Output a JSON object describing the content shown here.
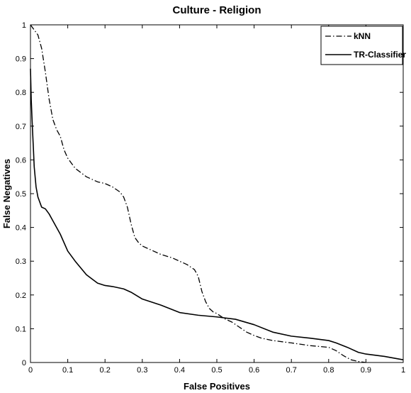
{
  "chart_data": {
    "type": "line",
    "title": "Culture - Religion",
    "xlabel": "False Positives",
    "ylabel": "False Negatives",
    "xlim": [
      0,
      1
    ],
    "ylim": [
      0,
      1
    ],
    "xticks": [
      "0",
      "0.1",
      "0.2",
      "0.3",
      "0.4",
      "0.5",
      "0.6",
      "0.7",
      "0.8",
      "0.9",
      "1"
    ],
    "yticks": [
      "0",
      "0.1",
      "0.2",
      "0.3",
      "0.4",
      "0.5",
      "0.6",
      "0.7",
      "0.8",
      "0.9",
      "1"
    ],
    "grid": false,
    "legend_position": "top-right",
    "series": [
      {
        "name": "kNN",
        "line_style": "dash-dot",
        "color": "#000000",
        "x": [
          0,
          0.01,
          0.02,
          0.03,
          0.04,
          0.05,
          0.06,
          0.07,
          0.08,
          0.09,
          0.1,
          0.12,
          0.15,
          0.18,
          0.2,
          0.22,
          0.24,
          0.25,
          0.26,
          0.27,
          0.28,
          0.29,
          0.3,
          0.32,
          0.35,
          0.38,
          0.4,
          0.42,
          0.44,
          0.45,
          0.46,
          0.47,
          0.48,
          0.49,
          0.5,
          0.52,
          0.54,
          0.56,
          0.58,
          0.6,
          0.62,
          0.65,
          0.7,
          0.75,
          0.8,
          0.82,
          0.84,
          0.86,
          0.88,
          0.9
        ],
        "y": [
          1.0,
          0.985,
          0.97,
          0.93,
          0.86,
          0.78,
          0.72,
          0.69,
          0.67,
          0.63,
          0.605,
          0.575,
          0.55,
          0.535,
          0.53,
          0.52,
          0.505,
          0.49,
          0.46,
          0.41,
          0.37,
          0.355,
          0.345,
          0.335,
          0.32,
          0.31,
          0.3,
          0.29,
          0.275,
          0.255,
          0.21,
          0.18,
          0.16,
          0.15,
          0.145,
          0.13,
          0.12,
          0.105,
          0.09,
          0.08,
          0.072,
          0.065,
          0.058,
          0.05,
          0.045,
          0.035,
          0.02,
          0.008,
          0.003,
          0.0
        ]
      },
      {
        "name": "TR-Classifier",
        "line_style": "solid",
        "color": "#000000",
        "x": [
          0,
          0.002,
          0.005,
          0.008,
          0.01,
          0.015,
          0.02,
          0.03,
          0.04,
          0.05,
          0.06,
          0.08,
          0.1,
          0.12,
          0.15,
          0.18,
          0.2,
          0.22,
          0.25,
          0.27,
          0.3,
          0.35,
          0.4,
          0.45,
          0.5,
          0.55,
          0.6,
          0.65,
          0.7,
          0.75,
          0.8,
          0.82,
          0.85,
          0.88,
          0.9,
          0.95,
          1.0
        ],
        "y": [
          0.87,
          0.78,
          0.7,
          0.63,
          0.58,
          0.52,
          0.49,
          0.46,
          0.455,
          0.44,
          0.42,
          0.38,
          0.33,
          0.3,
          0.26,
          0.235,
          0.228,
          0.225,
          0.218,
          0.208,
          0.188,
          0.17,
          0.148,
          0.14,
          0.135,
          0.128,
          0.112,
          0.09,
          0.078,
          0.072,
          0.065,
          0.058,
          0.045,
          0.03,
          0.025,
          0.018,
          0.008
        ]
      }
    ]
  }
}
